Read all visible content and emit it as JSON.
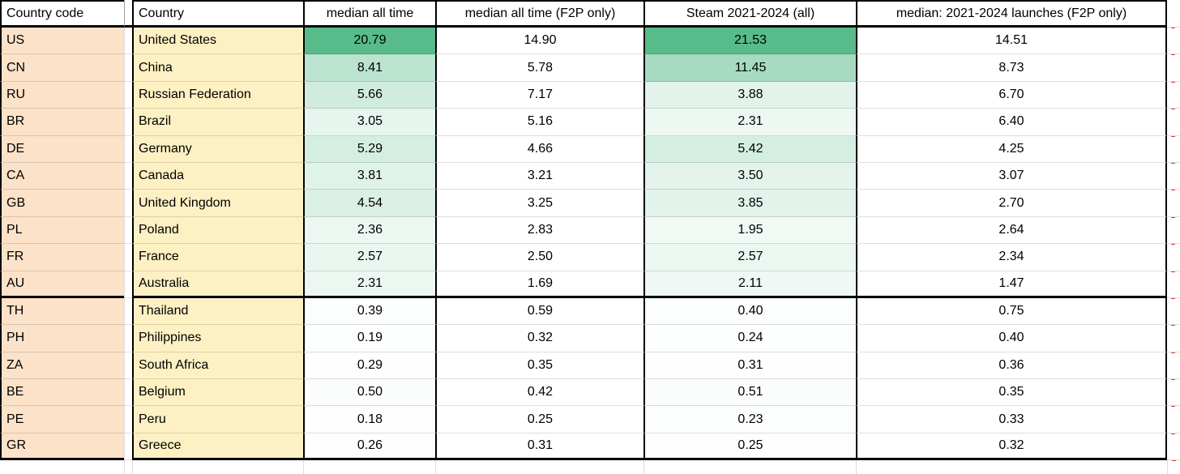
{
  "table": {
    "columns": [
      "Country code",
      "Country",
      "median all time",
      "median all time (F2P only)",
      "Steam 2021-2024 (all)",
      "median: 2021-2024 launches (F2P only)"
    ],
    "rows": [
      {
        "code": "US",
        "country": "United States",
        "median_all_time": "20.79",
        "median_all_time_f2p": "14.90",
        "steam_2021_2024_all": "21.53",
        "median_2021_2024_f2p": "14.51"
      },
      {
        "code": "CN",
        "country": "China",
        "median_all_time": "8.41",
        "median_all_time_f2p": "5.78",
        "steam_2021_2024_all": "11.45",
        "median_2021_2024_f2p": "8.73"
      },
      {
        "code": "RU",
        "country": "Russian Federation",
        "median_all_time": "5.66",
        "median_all_time_f2p": "7.17",
        "steam_2021_2024_all": "3.88",
        "median_2021_2024_f2p": "6.70"
      },
      {
        "code": "BR",
        "country": "Brazil",
        "median_all_time": "3.05",
        "median_all_time_f2p": "5.16",
        "steam_2021_2024_all": "2.31",
        "median_2021_2024_f2p": "6.40"
      },
      {
        "code": "DE",
        "country": "Germany",
        "median_all_time": "5.29",
        "median_all_time_f2p": "4.66",
        "steam_2021_2024_all": "5.42",
        "median_2021_2024_f2p": "4.25"
      },
      {
        "code": "CA",
        "country": "Canada",
        "median_all_time": "3.81",
        "median_all_time_f2p": "3.21",
        "steam_2021_2024_all": "3.50",
        "median_2021_2024_f2p": "3.07"
      },
      {
        "code": "GB",
        "country": "United Kingdom",
        "median_all_time": "4.54",
        "median_all_time_f2p": "3.25",
        "steam_2021_2024_all": "3.85",
        "median_2021_2024_f2p": "2.70"
      },
      {
        "code": "PL",
        "country": "Poland",
        "median_all_time": "2.36",
        "median_all_time_f2p": "2.83",
        "steam_2021_2024_all": "1.95",
        "median_2021_2024_f2p": "2.64"
      },
      {
        "code": "FR",
        "country": "France",
        "median_all_time": "2.57",
        "median_all_time_f2p": "2.50",
        "steam_2021_2024_all": "2.57",
        "median_2021_2024_f2p": "2.34"
      },
      {
        "code": "AU",
        "country": "Australia",
        "median_all_time": "2.31",
        "median_all_time_f2p": "1.69",
        "steam_2021_2024_all": "2.11",
        "median_2021_2024_f2p": "1.47"
      },
      {
        "code": "TH",
        "country": "Thailand",
        "median_all_time": "0.39",
        "median_all_time_f2p": "0.59",
        "steam_2021_2024_all": "0.40",
        "median_2021_2024_f2p": "0.75"
      },
      {
        "code": "PH",
        "country": "Philippines",
        "median_all_time": "0.19",
        "median_all_time_f2p": "0.32",
        "steam_2021_2024_all": "0.24",
        "median_2021_2024_f2p": "0.40"
      },
      {
        "code": "ZA",
        "country": "South Africa",
        "median_all_time": "0.29",
        "median_all_time_f2p": "0.35",
        "steam_2021_2024_all": "0.31",
        "median_2021_2024_f2p": "0.36"
      },
      {
        "code": "BE",
        "country": "Belgium",
        "median_all_time": "0.50",
        "median_all_time_f2p": "0.42",
        "steam_2021_2024_all": "0.51",
        "median_2021_2024_f2p": "0.35"
      },
      {
        "code": "PE",
        "country": "Peru",
        "median_all_time": "0.18",
        "median_all_time_f2p": "0.25",
        "steam_2021_2024_all": "0.23",
        "median_2021_2024_f2p": "0.33"
      },
      {
        "code": "GR",
        "country": "Greece",
        "median_all_time": "0.26",
        "median_all_time_f2p": "0.31",
        "steam_2021_2024_all": "0.25",
        "median_2021_2024_f2p": "0.32"
      }
    ],
    "divider_after_row_index": 9,
    "color_scale": {
      "median_all_time_max": 20.79,
      "steam_2021_2024_all_max": 21.53
    }
  },
  "colors": {
    "code_bg": "#fbe2c9",
    "country_bg": "#fdf0c3",
    "scale_max_green": "#57bb8a",
    "scale_min_white": "#ffffff",
    "block_border": "#000000",
    "gridline": "#dcdcdc",
    "red_dash": "#de3b26"
  }
}
